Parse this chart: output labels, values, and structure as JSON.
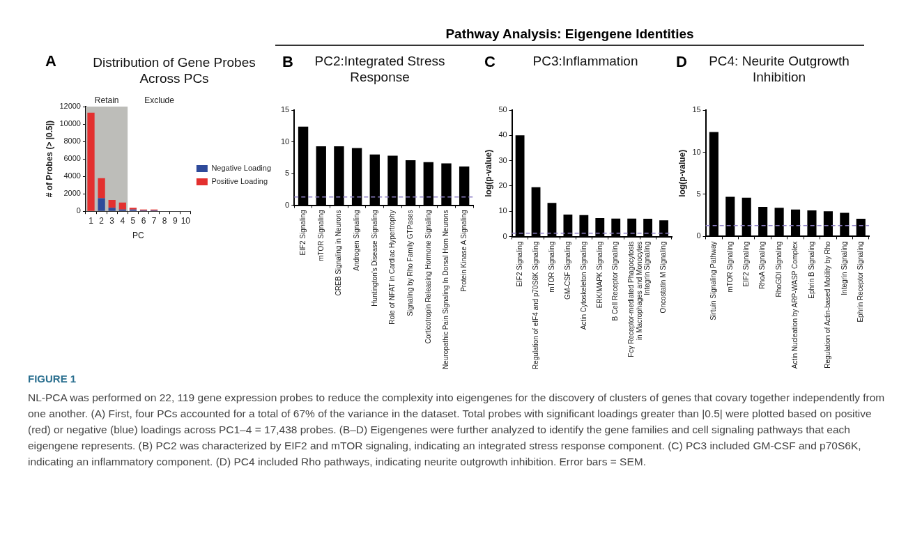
{
  "chart_data": [
    {
      "type": "bar",
      "title": "Distribution of Gene Probes Across PCs",
      "xlabel": "PC",
      "ylabel": "# of Probes (> |0.5|)",
      "categories": [
        "1",
        "2",
        "3",
        "4",
        "5",
        "6",
        "7",
        "8",
        "9",
        "10"
      ],
      "stacked": true,
      "series": [
        {
          "name": "Negative Loading",
          "color": "#2e4a9a",
          "values": [
            0,
            1500,
            400,
            200,
            200,
            100,
            100,
            0,
            0,
            0
          ]
        },
        {
          "name": "Positive Loading",
          "color": "#e3302f",
          "values": [
            11300,
            2300,
            900,
            800,
            200,
            100,
            100,
            0,
            0,
            0
          ]
        }
      ],
      "ylim": [
        0,
        12000
      ],
      "yticks": [
        0,
        2000,
        4000,
        6000,
        8000,
        10000,
        12000
      ],
      "grid": false,
      "legend": "right",
      "bands": [
        {
          "axis": "x",
          "from": "1",
          "to": "4",
          "label": "Retain",
          "color": "#bdbdb9"
        },
        {
          "axis": "x",
          "from": "5",
          "to": "10",
          "label": "Exclude",
          "color": "#ffffff"
        }
      ],
      "annotations": [
        "A"
      ]
    },
    {
      "type": "other",
      "title": "Pathway Analysis: Eigengene Identities"
    },
    {
      "type": "bar",
      "title": "PC2:Integrated Stress Response",
      "categories": [
        "EIF2 Signaling",
        "mTOR Signaling",
        "CREB Signaling in Neurons",
        "Androgen Signaling",
        "Huntington's Disease Signaling",
        "Role of NFAT in Cardiac Hypertrophy",
        "Signaling by Rho Family GTPases",
        "Corticotropin Releasing Hormone Signaling",
        "Neuropathic Pain Signaling In Dorsal Horn Neurons",
        "Protein Kinase A Signaling"
      ],
      "values": [
        12.4,
        9.3,
        9.3,
        9.0,
        8.0,
        7.8,
        7.1,
        6.8,
        6.6,
        6.1
      ],
      "color": "#000000",
      "ylim": [
        0,
        15
      ],
      "yticks": [
        0,
        5,
        10,
        15
      ],
      "grid": false,
      "legend": false,
      "ref_lines": [
        {
          "axis": "y",
          "value": 1.3,
          "color": "#8e80c8",
          "line_style": "dashed"
        }
      ],
      "annotations": [
        "B"
      ]
    },
    {
      "type": "bar",
      "title": "PC3:Inflammation",
      "ylabel": "log(p-value)",
      "categories": [
        "EIF2 Signaling",
        "Regulation of eIF4 and p70S6K Signaling",
        "mTOR Signaling",
        "GM-CSF Signaling",
        "Actin Cytoskeleton Signaling",
        "ERK/MAPK Signaling",
        "B Cell Receptor Signaling",
        "Fcγ Receptor-mediated Phagocytosis\nin Macrophages and Monocytes",
        "Integrin Signaling",
        "Oncostatin M Signaling"
      ],
      "values": [
        40,
        19.5,
        13.3,
        8.7,
        8.5,
        7.3,
        7.1,
        7.1,
        7.0,
        6.4
      ],
      "color": "#000000",
      "ylim": [
        0,
        50
      ],
      "yticks": [
        0,
        10,
        20,
        30,
        40,
        50
      ],
      "grid": false,
      "legend": false,
      "ref_lines": [
        {
          "axis": "y",
          "value": 1.3,
          "color": "#8e80c8",
          "line_style": "dashed"
        }
      ],
      "annotations": [
        "C"
      ]
    },
    {
      "type": "bar",
      "title": "PC4: Neurite Outgrowth Inhibition",
      "ylabel": "log(p-value)",
      "categories": [
        "Sirtuin Signaling Pathway",
        "mTOR Signaling",
        "EIF2 Signaling",
        "RhoA Signaling",
        "RhoGDI Signaling",
        "Actin Nucleation by ARP-WASP Complex",
        "Ephrin B Signaling",
        "Regulation of Actin-based Motility by Rho",
        "Integrin Signaling",
        "Ephrin Receptor Signaling"
      ],
      "values": [
        12.4,
        4.7,
        4.6,
        3.5,
        3.4,
        3.2,
        3.1,
        3.0,
        2.8,
        2.1
      ],
      "color": "#000000",
      "ylim": [
        0,
        15
      ],
      "yticks": [
        0,
        5,
        10,
        15
      ],
      "grid": false,
      "legend": false,
      "ref_lines": [
        {
          "axis": "y",
          "value": 1.3,
          "color": "#8e80c8",
          "line_style": "dashed"
        }
      ],
      "annotations": [
        "D"
      ]
    },
    {
      "type": "other",
      "title": "FIGURE 1",
      "annotations": [
        "NL-PCA was performed on 22, 119 gene expression probes to reduce the complexity into eigengenes for the discovery of clusters of genes that covary together independently from one another. (A) First, four PCs accounted for a total of 67% of the variance in the dataset. Total probes with significant loadings greater than |0.5| were plotted based on positive (red) or negative (blue) loadings across PC1–4 = 17,438 probes. (B–D) Eigengenes were further analyzed to identify the gene families and cell signaling pathways that each eigengene represents. (B) PC2 was characterized by EIF2 and mTOR signaling, indicating an integrated stress response component. (C) PC3 included GM-CSF and p70S6K, indicating an inflammatory component. (D) PC4 included Rho pathways, indicating neurite outgrowth inhibition. Error bars = SEM."
      ]
    }
  ]
}
